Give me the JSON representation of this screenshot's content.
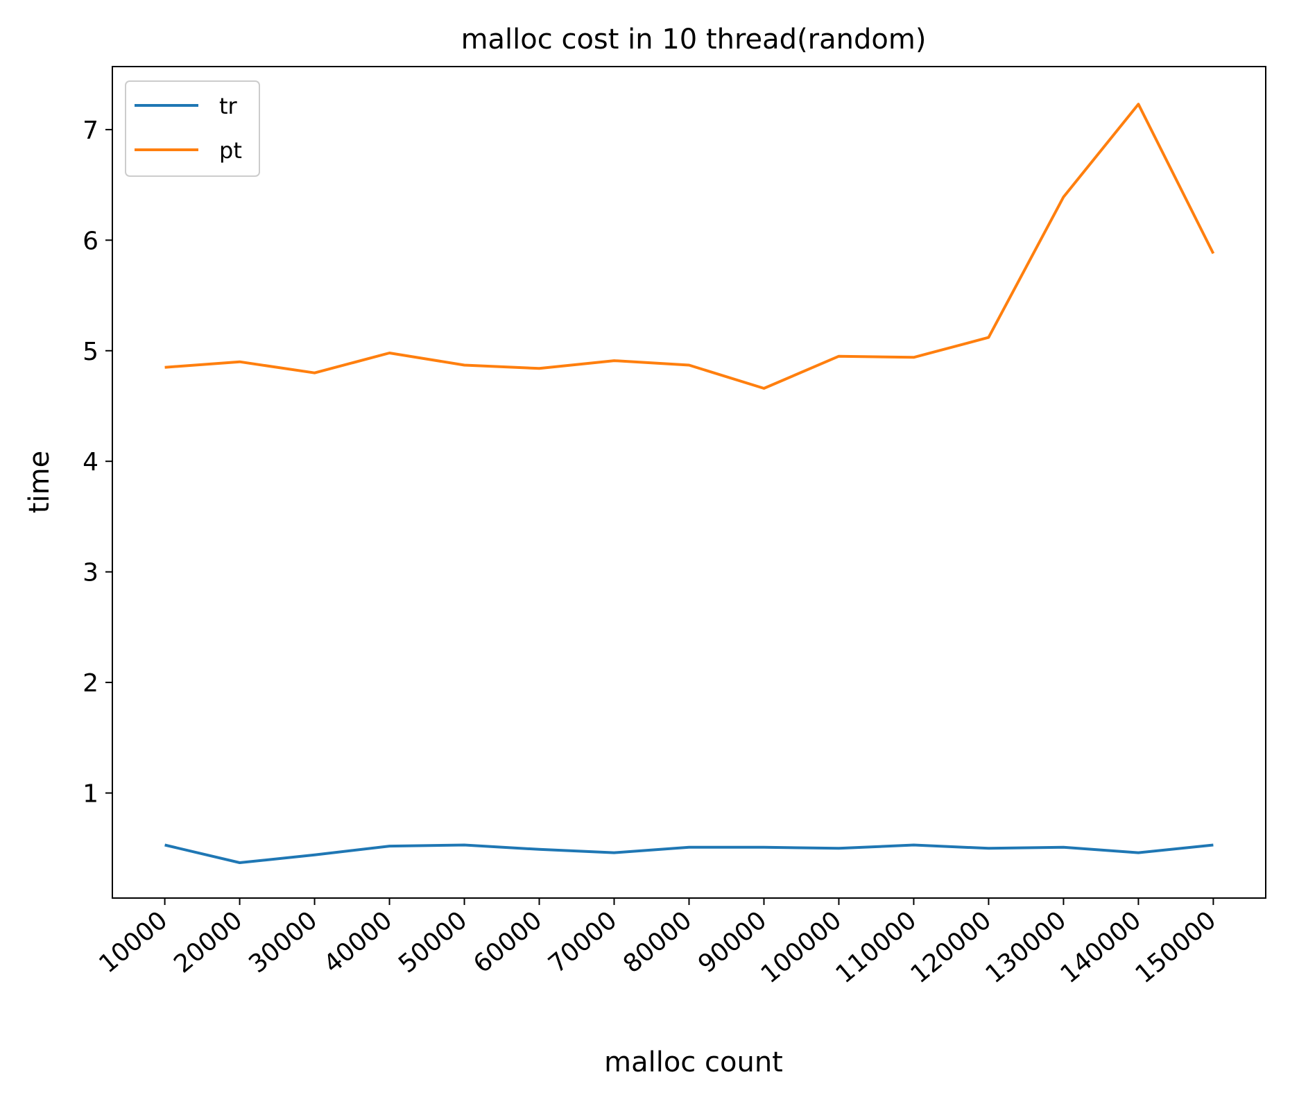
{
  "chart_data": {
    "type": "line",
    "title": "malloc cost in 10 thread(random)",
    "xlabel": "malloc count",
    "ylabel": "time",
    "x": [
      10000,
      20000,
      30000,
      40000,
      50000,
      60000,
      70000,
      80000,
      90000,
      100000,
      110000,
      120000,
      130000,
      140000,
      150000
    ],
    "x_tick_labels": [
      "10000",
      "20000",
      "30000",
      "40000",
      "50000",
      "60000",
      "70000",
      "80000",
      "90000",
      "100000",
      "110000",
      "120000",
      "130000",
      "140000",
      "150000"
    ],
    "y_ticks": [
      1,
      2,
      3,
      4,
      5,
      6,
      7
    ],
    "y_tick_labels": [
      "1",
      "2",
      "3",
      "4",
      "5",
      "6",
      "7"
    ],
    "xlim": [
      3000,
      157000
    ],
    "ylim": [
      0.05,
      7.57
    ],
    "grid": false,
    "legend_position": "top-left",
    "series": [
      {
        "name": "tr",
        "color": "#1f77b4",
        "values": [
          0.53,
          0.37,
          0.44,
          0.52,
          0.53,
          0.49,
          0.46,
          0.51,
          0.51,
          0.5,
          0.53,
          0.5,
          0.51,
          0.46,
          0.53
        ]
      },
      {
        "name": "pt",
        "color": "#ff7f0e",
        "values": [
          4.85,
          4.9,
          4.8,
          4.98,
          4.87,
          4.84,
          4.91,
          4.87,
          4.66,
          4.95,
          4.94,
          5.12,
          6.39,
          7.23,
          5.88
        ]
      }
    ]
  }
}
